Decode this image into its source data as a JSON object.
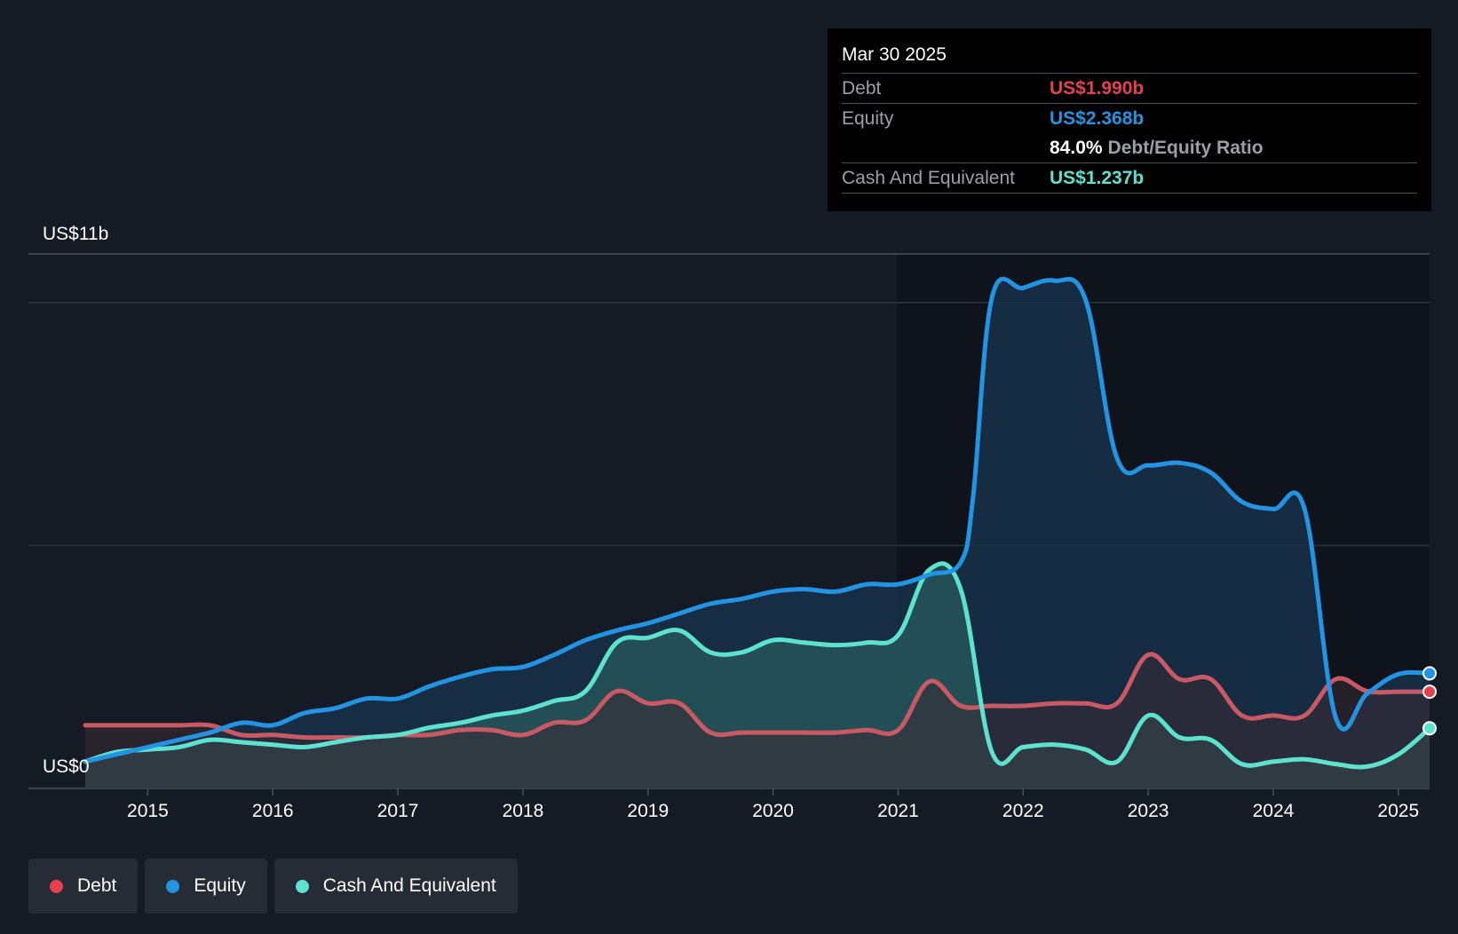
{
  "tooltip": {
    "date": "Mar 30 2025",
    "debt_label": "Debt",
    "debt_value": "US$1.990b",
    "equity_label": "Equity",
    "equity_value": "US$2.368b",
    "ratio_value": "84.0%",
    "ratio_label": "Debt/Equity Ratio",
    "cash_label": "Cash And Equivalent",
    "cash_value": "US$1.237b"
  },
  "legend": [
    {
      "label": "Debt",
      "color": "#e5414c"
    },
    {
      "label": "Equity",
      "color": "#2394e3"
    },
    {
      "label": "Cash And Equivalent",
      "color": "#5de2cf"
    }
  ],
  "chart_data": {
    "type": "area",
    "title": "",
    "xlabel": "",
    "ylabel": "",
    "y_top_label": "US$11b",
    "y_bottom_label": "US$0",
    "ylim": [
      0,
      11
    ],
    "xlim": [
      2014.5,
      2025.25
    ],
    "gridlines": [
      0,
      5,
      10,
      11
    ],
    "x_ticks": [
      "2015",
      "2016",
      "2017",
      "2018",
      "2019",
      "2020",
      "2021",
      "2022",
      "2023",
      "2024",
      "2025"
    ],
    "x_tick_values": [
      2015,
      2016,
      2017,
      2018,
      2019,
      2020,
      2021,
      2022,
      2023,
      2024,
      2025
    ],
    "series": [
      {
        "name": "Equity",
        "color": "#2394e3",
        "fill": "#16304a",
        "points": [
          [
            2014.5,
            0.55
          ],
          [
            2014.75,
            0.7
          ],
          [
            2015.0,
            0.85
          ],
          [
            2015.25,
            1.0
          ],
          [
            2015.5,
            1.15
          ],
          [
            2015.75,
            1.35
          ],
          [
            2016.0,
            1.3
          ],
          [
            2016.25,
            1.55
          ],
          [
            2016.5,
            1.65
          ],
          [
            2016.75,
            1.85
          ],
          [
            2017.0,
            1.85
          ],
          [
            2017.25,
            2.1
          ],
          [
            2017.5,
            2.3
          ],
          [
            2017.75,
            2.45
          ],
          [
            2018.0,
            2.5
          ],
          [
            2018.25,
            2.75
          ],
          [
            2018.5,
            3.05
          ],
          [
            2018.75,
            3.25
          ],
          [
            2019.0,
            3.4
          ],
          [
            2019.25,
            3.6
          ],
          [
            2019.5,
            3.8
          ],
          [
            2019.75,
            3.9
          ],
          [
            2020.0,
            4.05
          ],
          [
            2020.25,
            4.1
          ],
          [
            2020.5,
            4.05
          ],
          [
            2020.75,
            4.2
          ],
          [
            2021.0,
            4.2
          ],
          [
            2021.25,
            4.4
          ],
          [
            2021.5,
            4.65
          ],
          [
            2021.6,
            6.0
          ],
          [
            2021.75,
            10.1
          ],
          [
            2022.0,
            10.3
          ],
          [
            2022.25,
            10.45
          ],
          [
            2022.5,
            10.05
          ],
          [
            2022.75,
            6.8
          ],
          [
            2023.0,
            6.65
          ],
          [
            2023.25,
            6.7
          ],
          [
            2023.5,
            6.5
          ],
          [
            2023.75,
            5.9
          ],
          [
            2024.0,
            5.75
          ],
          [
            2024.25,
            5.75
          ],
          [
            2024.5,
            1.45
          ],
          [
            2024.75,
            1.95
          ],
          [
            2025.0,
            2.35
          ],
          [
            2025.25,
            2.368
          ]
        ]
      },
      {
        "name": "Cash And Equivalent",
        "color": "#5de2cf",
        "fill": "#2a5a5c",
        "points": [
          [
            2014.5,
            0.55
          ],
          [
            2014.75,
            0.75
          ],
          [
            2015.0,
            0.8
          ],
          [
            2015.25,
            0.85
          ],
          [
            2015.5,
            1.0
          ],
          [
            2015.75,
            0.95
          ],
          [
            2016.0,
            0.9
          ],
          [
            2016.25,
            0.85
          ],
          [
            2016.5,
            0.95
          ],
          [
            2016.75,
            1.05
          ],
          [
            2017.0,
            1.1
          ],
          [
            2017.25,
            1.25
          ],
          [
            2017.5,
            1.35
          ],
          [
            2017.75,
            1.5
          ],
          [
            2018.0,
            1.6
          ],
          [
            2018.25,
            1.8
          ],
          [
            2018.5,
            2.0
          ],
          [
            2018.75,
            3.0
          ],
          [
            2019.0,
            3.1
          ],
          [
            2019.25,
            3.25
          ],
          [
            2019.5,
            2.8
          ],
          [
            2019.75,
            2.8
          ],
          [
            2020.0,
            3.05
          ],
          [
            2020.25,
            3.0
          ],
          [
            2020.5,
            2.95
          ],
          [
            2020.75,
            3.0
          ],
          [
            2021.0,
            3.15
          ],
          [
            2021.25,
            4.5
          ],
          [
            2021.5,
            4.1
          ],
          [
            2021.75,
            0.75
          ],
          [
            2022.0,
            0.85
          ],
          [
            2022.25,
            0.9
          ],
          [
            2022.5,
            0.8
          ],
          [
            2022.75,
            0.55
          ],
          [
            2023.0,
            1.5
          ],
          [
            2023.25,
            1.05
          ],
          [
            2023.5,
            1.0
          ],
          [
            2023.75,
            0.5
          ],
          [
            2024.0,
            0.55
          ],
          [
            2024.25,
            0.6
          ],
          [
            2024.5,
            0.5
          ],
          [
            2024.75,
            0.45
          ],
          [
            2025.0,
            0.7
          ],
          [
            2025.25,
            1.237
          ]
        ]
      },
      {
        "name": "Debt",
        "color": "#e5414c",
        "line_color": "#c95a63",
        "fill": "#3a2a33",
        "points": [
          [
            2014.5,
            1.3
          ],
          [
            2014.75,
            1.3
          ],
          [
            2015.0,
            1.3
          ],
          [
            2015.25,
            1.3
          ],
          [
            2015.5,
            1.3
          ],
          [
            2015.75,
            1.1
          ],
          [
            2016.0,
            1.1
          ],
          [
            2016.25,
            1.05
          ],
          [
            2016.5,
            1.05
          ],
          [
            2016.75,
            1.05
          ],
          [
            2017.0,
            1.1
          ],
          [
            2017.25,
            1.1
          ],
          [
            2017.5,
            1.2
          ],
          [
            2017.75,
            1.2
          ],
          [
            2018.0,
            1.1
          ],
          [
            2018.25,
            1.35
          ],
          [
            2018.5,
            1.4
          ],
          [
            2018.75,
            2.0
          ],
          [
            2019.0,
            1.75
          ],
          [
            2019.25,
            1.75
          ],
          [
            2019.5,
            1.15
          ],
          [
            2019.75,
            1.15
          ],
          [
            2020.0,
            1.15
          ],
          [
            2020.25,
            1.15
          ],
          [
            2020.5,
            1.15
          ],
          [
            2020.75,
            1.2
          ],
          [
            2021.0,
            1.2
          ],
          [
            2021.25,
            2.2
          ],
          [
            2021.5,
            1.7
          ],
          [
            2021.75,
            1.7
          ],
          [
            2022.0,
            1.7
          ],
          [
            2022.25,
            1.75
          ],
          [
            2022.5,
            1.75
          ],
          [
            2022.75,
            1.75
          ],
          [
            2023.0,
            2.75
          ],
          [
            2023.25,
            2.25
          ],
          [
            2023.5,
            2.25
          ],
          [
            2023.75,
            1.5
          ],
          [
            2024.0,
            1.5
          ],
          [
            2024.25,
            1.5
          ],
          [
            2024.5,
            2.25
          ],
          [
            2024.75,
            2.0
          ],
          [
            2025.0,
            1.99
          ],
          [
            2025.25,
            1.99
          ]
        ]
      }
    ]
  }
}
